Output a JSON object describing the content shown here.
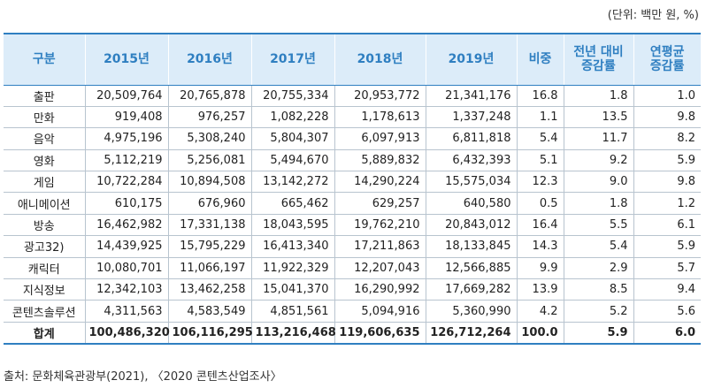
{
  "unit_note": "(단위: 백만 원, %)",
  "headers": [
    "구분",
    "2015년",
    "2016년",
    "2017년",
    "2018년",
    "2019년",
    "비중",
    "전년 대비\n증감률",
    "연평균\n증감률"
  ],
  "rows": [
    [
      "출판",
      "20,509,764",
      "20,765,878",
      "20,755,334",
      "20,953,772",
      "21,341,176",
      "16.8",
      "1.8",
      "1.0"
    ],
    [
      "만화",
      "919,408",
      "976,257",
      "1,082,228",
      "1,178,613",
      "1,337,248",
      "1.1",
      "13.5",
      "9.8"
    ],
    [
      "음악",
      "4,975,196",
      "5,308,240",
      "5,804,307",
      "6,097,913",
      "6,811,818",
      "5.4",
      "11.7",
      "8.2"
    ],
    [
      "영화",
      "5,112,219",
      "5,256,081",
      "5,494,670",
      "5,889,832",
      "6,432,393",
      "5.1",
      "9.2",
      "5.9"
    ],
    [
      "게임",
      "10,722,284",
      "10,894,508",
      "13,142,272",
      "14,290,224",
      "15,575,034",
      "12.3",
      "9.0",
      "9.8"
    ],
    [
      "애니메이션",
      "610,175",
      "676,960",
      "665,462",
      "629,257",
      "640,580",
      "0.5",
      "1.8",
      "1.2"
    ],
    [
      "방송",
      "16,462,982",
      "17,331,138",
      "18,043,595",
      "19,762,210",
      "20,843,012",
      "16.4",
      "5.5",
      "6.1"
    ],
    [
      "광고32)",
      "14,439,925",
      "15,795,229",
      "16,413,340",
      "17,211,863",
      "18,133,845",
      "14.3",
      "5.4",
      "5.9"
    ],
    [
      "캐릭터",
      "10,080,701",
      "11,066,197",
      "11,922,329",
      "12,207,043",
      "12,566,885",
      "9.9",
      "2.9",
      "5.7"
    ],
    [
      "지식정보",
      "12,342,103",
      "13,462,258",
      "15,041,370",
      "16,290,992",
      "17,669,282",
      "13.9",
      "8.5",
      "9.4"
    ],
    [
      "콘텐츠솔루션",
      "4,311,563",
      "4,583,549",
      "4,851,561",
      "5,094,916",
      "5,360,990",
      "4.2",
      "5.2",
      "5.6"
    ]
  ],
  "total_row": [
    "합계",
    "100,486,320",
    "106,116,295",
    "113,216,468",
    "119,606,635",
    "126,712,264",
    "100.0",
    "5.9",
    "6.0"
  ],
  "source_note": "출처: 문화체육관광부(2021), 〈2020 콘텐츠산업조사〉",
  "colors": {
    "header_bg": "#dcecf9",
    "header_text": "#2f7fc1",
    "rule": "#2f7fc1"
  }
}
